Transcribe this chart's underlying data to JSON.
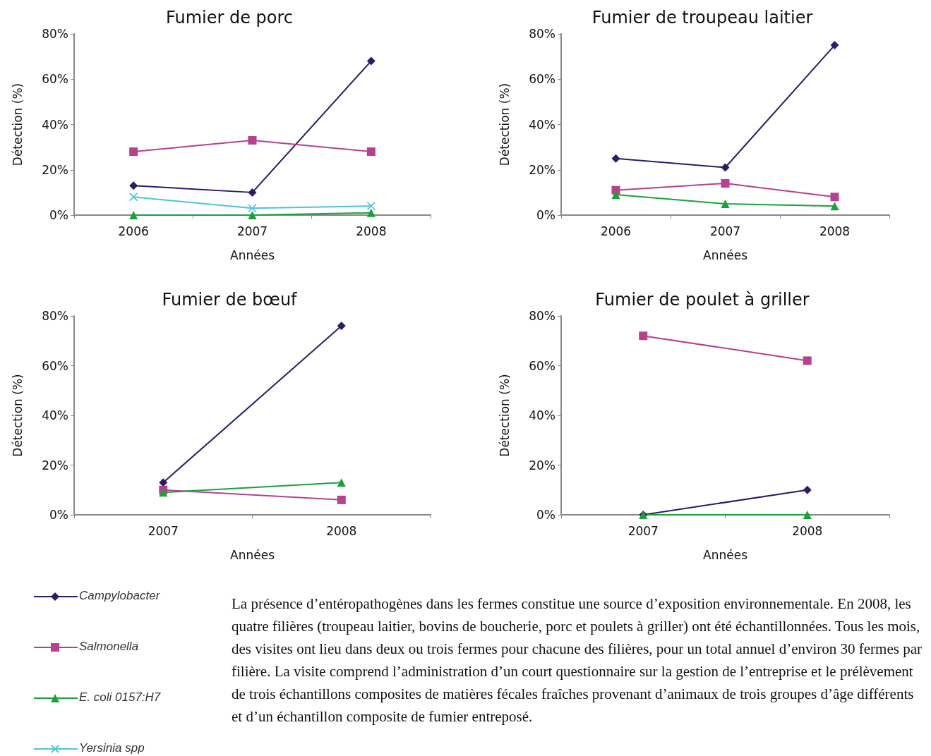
{
  "chart_data": [
    {
      "type": "line",
      "title": "Fumier de porc",
      "xlabel": "Années",
      "ylabel": "Détection (%)",
      "categories": [
        "2006",
        "2007",
        "2008"
      ],
      "ylim": [
        0,
        80
      ],
      "yticks": [
        {
          "value": 0,
          "label": "0%"
        },
        {
          "value": 20,
          "label": "20%"
        },
        {
          "value": 40,
          "label": "40%"
        },
        {
          "value": 60,
          "label": "60%"
        },
        {
          "value": 80,
          "label": "80%"
        }
      ],
      "grid": false,
      "legend": "bottom left",
      "series": [
        {
          "name": "Campylobacter",
          "color": "#2e1a66",
          "marker": "diamond",
          "values": [
            13,
            10,
            68
          ]
        },
        {
          "name": "Salmonella",
          "color": "#b5418f",
          "marker": "square",
          "values": [
            28,
            33,
            28
          ]
        },
        {
          "name": "E. coli 0157:H7",
          "color": "#1aa23a",
          "marker": "triangle",
          "values": [
            0,
            0,
            1
          ]
        },
        {
          "name": "Yersinia spp",
          "color": "#4fc3d8",
          "marker": "cross",
          "values": [
            8,
            3,
            4
          ]
        }
      ]
    },
    {
      "type": "line",
      "title": "Fumier de troupeau laitier",
      "xlabel": "Années",
      "ylabel": "Détection (%)",
      "categories": [
        "2006",
        "2007",
        "2008"
      ],
      "ylim": [
        0,
        80
      ],
      "yticks": [
        {
          "value": 0,
          "label": "0%"
        },
        {
          "value": 20,
          "label": "20%"
        },
        {
          "value": 40,
          "label": "40%"
        },
        {
          "value": 60,
          "label": "60%"
        },
        {
          "value": 80,
          "label": "80%"
        }
      ],
      "grid": false,
      "series": [
        {
          "color": "#2e1a66",
          "marker": "diamond",
          "values": [
            25,
            21,
            75
          ]
        },
        {
          "color": "#b5418f",
          "marker": "square",
          "values": [
            11,
            14,
            8
          ]
        },
        {
          "color": "#1aa23a",
          "marker": "triangle",
          "values": [
            9,
            5,
            4
          ]
        }
      ]
    },
    {
      "type": "line",
      "title": "Fumier de bœuf",
      "xlabel": "Années",
      "ylabel": "Détection (%)",
      "categories": [
        "2007",
        "2008"
      ],
      "ylim": [
        0,
        80
      ],
      "yticks": [
        {
          "value": 0,
          "label": "0%"
        },
        {
          "value": 20,
          "label": "20%"
        },
        {
          "value": 40,
          "label": "40%"
        },
        {
          "value": 60,
          "label": "60%"
        },
        {
          "value": 80,
          "label": "80%"
        }
      ],
      "grid": false,
      "series": [
        {
          "color": "#2e1a66",
          "marker": "diamond",
          "values": [
            13,
            76
          ]
        },
        {
          "color": "#b5418f",
          "marker": "square",
          "values": [
            10,
            6
          ]
        },
        {
          "color": "#1aa23a",
          "marker": "triangle",
          "values": [
            9,
            13
          ]
        }
      ]
    },
    {
      "type": "line",
      "title": "Fumier de poulet à griller",
      "xlabel": "Années",
      "ylabel": "Détection (%)",
      "categories": [
        "2007",
        "2008"
      ],
      "ylim": [
        0,
        80
      ],
      "yticks": [
        {
          "value": 0,
          "label": "0%"
        },
        {
          "value": 20,
          "label": "20%"
        },
        {
          "value": 40,
          "label": "40%"
        },
        {
          "value": 60,
          "label": "60%"
        },
        {
          "value": 80,
          "label": "80%"
        }
      ],
      "grid": false,
      "series": [
        {
          "color": "#2e1a66",
          "marker": "diamond",
          "values": [
            0,
            10
          ]
        },
        {
          "color": "#b5418f",
          "marker": "square",
          "values": [
            72,
            62
          ]
        },
        {
          "color": "#1aa23a",
          "marker": "triangle",
          "values": [
            0,
            0
          ]
        }
      ]
    },
    {
      "type": "other",
      "annotations": [
        "La présence d’entéropathogènes dans les fermes constitue une source d’exposition environnementale. En 2008, les quatre filières (troupeau laitier, bovins de boucherie, porc et poulets à griller) ont été échantillonnées. Tous les mois, des visites ont lieu dans deux ou trois fermes pour chacune des filières, pour un total annuel d’environ 30 fermes par filière. La visite comprend l’administration d’un court questionnaire sur la gestion de l’entreprise et le prélèvement de trois échantillons composites de matières fécales fraîches provenant d’animaux de trois groupes d’âge différents et d’un échantillon composite de fumier entreposé."
      ]
    }
  ]
}
